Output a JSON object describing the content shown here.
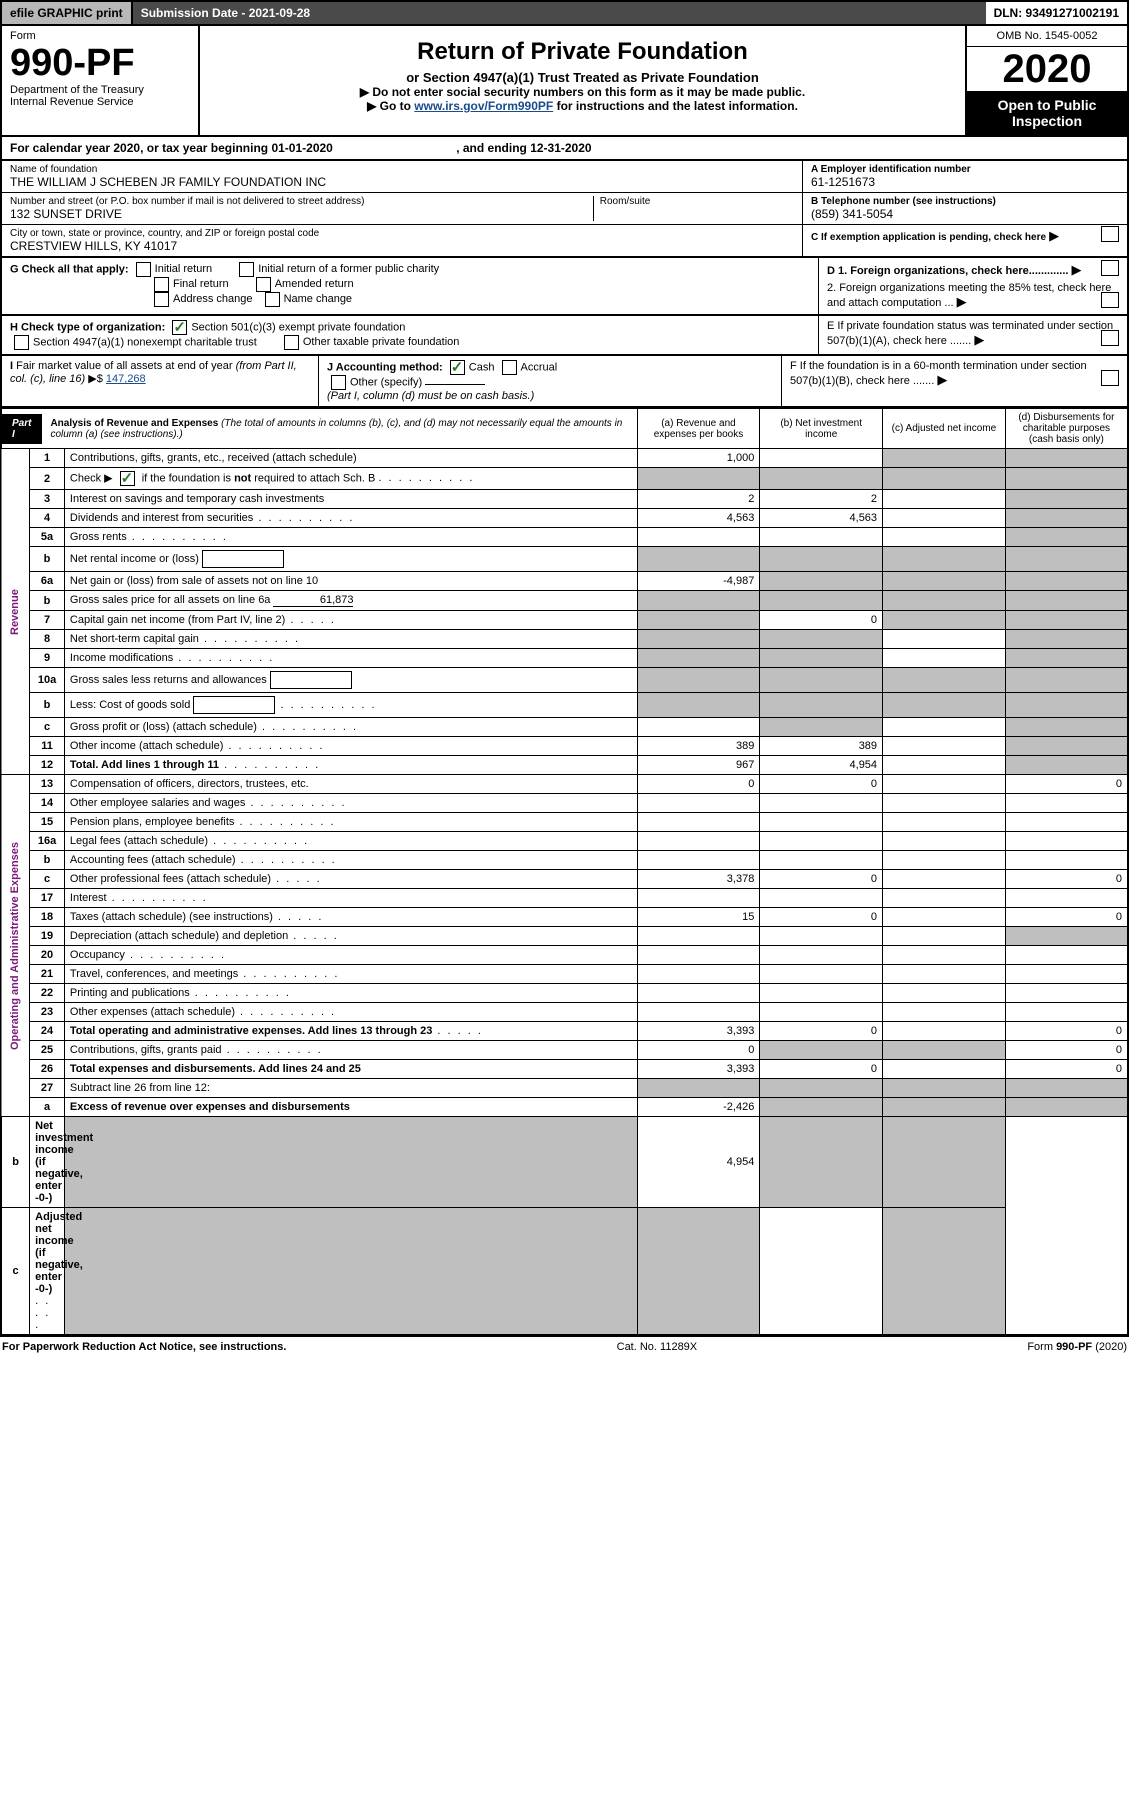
{
  "topbar": {
    "efile": "efile GRAPHIC print",
    "submission_label": "Submission Date - 2021-09-28",
    "dln": "DLN: 93491271002191"
  },
  "header": {
    "form_word": "Form",
    "form_number": "990-PF",
    "dept1": "Department of the Treasury",
    "dept2": "Internal Revenue Service",
    "title": "Return of Private Foundation",
    "subtitle": "or Section 4947(a)(1) Trust Treated as Private Foundation",
    "note1": "▶ Do not enter social security numbers on this form as it may be made public.",
    "note2_pre": "▶ Go to ",
    "note2_link": "www.irs.gov/Form990PF",
    "note2_post": " for instructions and the latest information.",
    "omb": "OMB No. 1545-0052",
    "tax_year": "2020",
    "open": "Open to Public Inspection"
  },
  "calendar_year": {
    "prefix": "For calendar year 2020, or tax year beginning ",
    "begin": "01-01-2020",
    "mid": " , and ending ",
    "end": "12-31-2020"
  },
  "entity": {
    "name_label": "Name of foundation",
    "name": "THE WILLIAM J SCHEBEN JR FAMILY FOUNDATION INC",
    "addr_label": "Number and street (or P.O. box number if mail is not delivered to street address)",
    "addr": "132 SUNSET DRIVE",
    "room_label": "Room/suite",
    "city_label": "City or town, state or province, country, and ZIP or foreign postal code",
    "city": "CRESTVIEW HILLS, KY  41017",
    "ein_label": "A Employer identification number",
    "ein": "61-1251673",
    "phone_label": "B Telephone number (see instructions)",
    "phone": "(859) 341-5054",
    "c_label": "C If exemption application is pending, check here"
  },
  "G": {
    "label": "G Check all that apply:",
    "opts": [
      "Initial return",
      "Initial return of a former public charity",
      "Final return",
      "Amended return",
      "Address change",
      "Name change"
    ]
  },
  "D_section": {
    "d1": "D 1. Foreign organizations, check here.............",
    "d2": "2. Foreign organizations meeting the 85% test, check here and attach computation ...",
    "e": "E  If private foundation status was terminated under section 507(b)(1)(A), check here .......",
    "f": "F  If the foundation is in a 60-month termination under section 507(b)(1)(B), check here ......."
  },
  "H": {
    "label": "H Check type of organization:",
    "opt1": "Section 501(c)(3) exempt private foundation",
    "opt2": "Section 4947(a)(1) nonexempt charitable trust",
    "opt3": "Other taxable private foundation"
  },
  "I": {
    "label": "I Fair market value of all assets at end of year (from Part II, col. (c), line 16) ▶$ ",
    "value": "147,268"
  },
  "J": {
    "label": "J Accounting method:",
    "cash": "Cash",
    "accrual": "Accrual",
    "other": "Other (specify)",
    "note": "(Part I, column (d) must be on cash basis.)"
  },
  "part1": {
    "tag": "Part I",
    "title": "Analysis of Revenue and Expenses",
    "paren": " (The total of amounts in columns (b), (c), and (d) may not necessarily equal the amounts in column (a) (see instructions).)",
    "col_a": "(a) Revenue and expenses per books",
    "col_b": "(b) Net investment income",
    "col_c": "(c) Adjusted net income",
    "col_d": "(d) Disbursements for charitable purposes (cash basis only)"
  },
  "vlabels": {
    "revenue": "Revenue",
    "expenses": "Operating and Administrative Expenses"
  },
  "rows": [
    {
      "n": "1",
      "label": "Contributions, gifts, grants, etc., received (attach schedule)",
      "a": "1,000",
      "b": "",
      "c": "grey",
      "d": "grey"
    },
    {
      "n": "2",
      "label": "Check ▶ ☑ if the foundation is not required to attach Sch. B",
      "dots": true,
      "a": "grey",
      "b": "grey",
      "c": "grey",
      "d": "grey"
    },
    {
      "n": "3",
      "label": "Interest on savings and temporary cash investments",
      "a": "2",
      "b": "2",
      "c": "",
      "d": "grey"
    },
    {
      "n": "4",
      "label": "Dividends and interest from securities",
      "dots": true,
      "a": "4,563",
      "b": "4,563",
      "c": "",
      "d": "grey"
    },
    {
      "n": "5a",
      "label": "Gross rents",
      "dots": true,
      "a": "",
      "b": "",
      "c": "",
      "d": "grey"
    },
    {
      "n": "b",
      "label": "Net rental income or (loss)",
      "embed": true,
      "a": "grey",
      "b": "grey",
      "c": "grey",
      "d": "grey"
    },
    {
      "n": "6a",
      "label": "Net gain or (loss) from sale of assets not on line 10",
      "a": "-4,987",
      "b": "grey",
      "c": "grey",
      "d": "grey"
    },
    {
      "n": "b",
      "label": "Gross sales price for all assets on line 6a",
      "embed_val": "61,873",
      "a": "grey",
      "b": "grey",
      "c": "grey",
      "d": "grey"
    },
    {
      "n": "7",
      "label": "Capital gain net income (from Part IV, line 2)",
      "dots": true,
      "a": "grey",
      "b": "0",
      "c": "grey",
      "d": "grey"
    },
    {
      "n": "8",
      "label": "Net short-term capital gain",
      "dots": true,
      "a": "grey",
      "b": "grey",
      "c": "",
      "d": "grey"
    },
    {
      "n": "9",
      "label": "Income modifications",
      "dots": true,
      "a": "grey",
      "b": "grey",
      "c": "",
      "d": "grey"
    },
    {
      "n": "10a",
      "label": "Gross sales less returns and allowances",
      "embed": true,
      "a": "grey",
      "b": "grey",
      "c": "grey",
      "d": "grey"
    },
    {
      "n": "b",
      "label": "Less: Cost of goods sold",
      "dots": true,
      "embed": true,
      "a": "grey",
      "b": "grey",
      "c": "grey",
      "d": "grey"
    },
    {
      "n": "c",
      "label": "Gross profit or (loss) (attach schedule)",
      "dots": true,
      "a": "",
      "b": "grey",
      "c": "",
      "d": "grey"
    },
    {
      "n": "11",
      "label": "Other income (attach schedule)",
      "dots": true,
      "a": "389",
      "b": "389",
      "c": "",
      "d": "grey"
    },
    {
      "n": "12",
      "label": "Total. Add lines 1 through 11",
      "bold": true,
      "dots": true,
      "a": "967",
      "b": "4,954",
      "c": "",
      "d": "grey"
    },
    {
      "n": "13",
      "label": "Compensation of officers, directors, trustees, etc.",
      "a": "0",
      "b": "0",
      "c": "",
      "d": "0"
    },
    {
      "n": "14",
      "label": "Other employee salaries and wages",
      "dots": true,
      "a": "",
      "b": "",
      "c": "",
      "d": ""
    },
    {
      "n": "15",
      "label": "Pension plans, employee benefits",
      "dots": true,
      "a": "",
      "b": "",
      "c": "",
      "d": ""
    },
    {
      "n": "16a",
      "label": "Legal fees (attach schedule)",
      "dots": true,
      "a": "",
      "b": "",
      "c": "",
      "d": ""
    },
    {
      "n": "b",
      "label": "Accounting fees (attach schedule)",
      "dots": true,
      "a": "",
      "b": "",
      "c": "",
      "d": ""
    },
    {
      "n": "c",
      "label": "Other professional fees (attach schedule)",
      "dots": true,
      "a": "3,378",
      "b": "0",
      "c": "",
      "d": "0"
    },
    {
      "n": "17",
      "label": "Interest",
      "dots": true,
      "a": "",
      "b": "",
      "c": "",
      "d": ""
    },
    {
      "n": "18",
      "label": "Taxes (attach schedule) (see instructions)",
      "dots": true,
      "a": "15",
      "b": "0",
      "c": "",
      "d": "0"
    },
    {
      "n": "19",
      "label": "Depreciation (attach schedule) and depletion",
      "dots": true,
      "a": "",
      "b": "",
      "c": "",
      "d": "grey"
    },
    {
      "n": "20",
      "label": "Occupancy",
      "dots": true,
      "a": "",
      "b": "",
      "c": "",
      "d": ""
    },
    {
      "n": "21",
      "label": "Travel, conferences, and meetings",
      "dots": true,
      "a": "",
      "b": "",
      "c": "",
      "d": ""
    },
    {
      "n": "22",
      "label": "Printing and publications",
      "dots": true,
      "a": "",
      "b": "",
      "c": "",
      "d": ""
    },
    {
      "n": "23",
      "label": "Other expenses (attach schedule)",
      "dots": true,
      "a": "",
      "b": "",
      "c": "",
      "d": ""
    },
    {
      "n": "24",
      "label": "Total operating and administrative expenses. Add lines 13 through 23",
      "bold": true,
      "dots": true,
      "a": "3,393",
      "b": "0",
      "c": "",
      "d": "0"
    },
    {
      "n": "25",
      "label": "Contributions, gifts, grants paid",
      "dots": true,
      "a": "0",
      "b": "grey",
      "c": "grey",
      "d": "0"
    },
    {
      "n": "26",
      "label": "Total expenses and disbursements. Add lines 24 and 25",
      "bold": true,
      "a": "3,393",
      "b": "0",
      "c": "",
      "d": "0"
    },
    {
      "n": "27",
      "label": "Subtract line 26 from line 12:",
      "a": "grey",
      "b": "grey",
      "c": "grey",
      "d": "grey"
    },
    {
      "n": "a",
      "label": "Excess of revenue over expenses and disbursements",
      "bold": true,
      "a": "-2,426",
      "b": "grey",
      "c": "grey",
      "d": "grey"
    },
    {
      "n": "b",
      "label": "Net investment income (if negative, enter -0-)",
      "bold": true,
      "a": "grey",
      "b": "4,954",
      "c": "grey",
      "d": "grey"
    },
    {
      "n": "c",
      "label": "Adjusted net income (if negative, enter -0-)",
      "bold": true,
      "dots": true,
      "a": "grey",
      "b": "grey",
      "c": "",
      "d": "grey"
    }
  ],
  "revenue_rowspan": 16,
  "expense_row_start": 16,
  "expense_rowspan": 18,
  "footer": {
    "left": "For Paperwork Reduction Act Notice, see instructions.",
    "mid": "Cat. No. 11289X",
    "right": "Form 990-PF (2020)"
  }
}
